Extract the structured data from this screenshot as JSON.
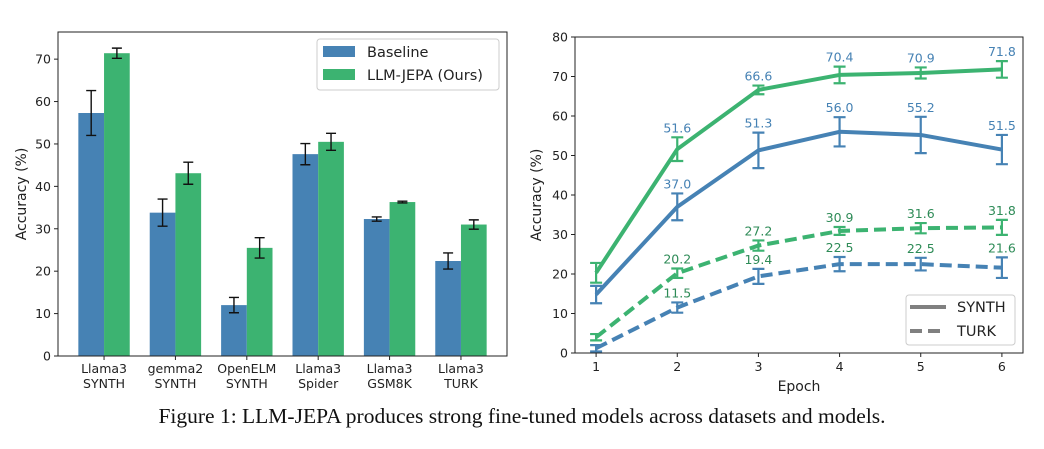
{
  "caption": "Figure 1: LLM-JEPA produces strong fine-tuned models across datasets and models.",
  "colors": {
    "baseline": "#4682b4",
    "llm_jepa": "#3cb371",
    "legend_line": "#808080"
  },
  "chart_data": [
    {
      "type": "bar",
      "categories": [
        [
          "Llama3",
          "SYNTH"
        ],
        [
          "gemma2",
          "SYNTH"
        ],
        [
          "OpenELM",
          "SYNTH"
        ],
        [
          "Llama3",
          "Spider"
        ],
        [
          "Llama3",
          "GSM8K"
        ],
        [
          "Llama3",
          "TURK"
        ]
      ],
      "series": [
        {
          "name": "Baseline",
          "color": "#4682b4",
          "values": [
            57.3,
            33.8,
            12.0,
            47.6,
            32.3,
            22.4
          ],
          "errors": [
            5.3,
            3.2,
            1.8,
            2.5,
            0.5,
            1.9
          ]
        },
        {
          "name": "LLM-JEPA (Ours)",
          "color": "#3cb371",
          "values": [
            71.4,
            43.1,
            25.5,
            50.5,
            36.3,
            31.0
          ],
          "errors": [
            1.2,
            2.6,
            2.4,
            2.0,
            0.2,
            1.1
          ]
        }
      ],
      "xlabel": "",
      "ylabel": "Accuracy (%)",
      "ylim": [
        0,
        76.4
      ],
      "yticks": [
        0,
        10,
        20,
        30,
        40,
        50,
        60,
        70
      ],
      "grid": false,
      "legend": "top-right"
    },
    {
      "type": "line",
      "x": [
        1,
        2,
        3,
        4,
        5,
        6
      ],
      "xlabel": "Epoch",
      "ylabel": "Accuracy (%)",
      "xlim": [
        0.74,
        6.26
      ],
      "ylim": [
        0,
        80
      ],
      "yticks": [
        0,
        10,
        20,
        30,
        40,
        50,
        60,
        70,
        80
      ],
      "grid": false,
      "legend": "bottom-right",
      "legend_entries": [
        {
          "label": "SYNTH",
          "style": "solid"
        },
        {
          "label": "TURK",
          "style": "dashed"
        }
      ],
      "series": [
        {
          "model": "LLM-JEPA",
          "dataset": "SYNTH",
          "color": "#3cb371",
          "style": "solid",
          "label_color": "#4682b4",
          "values": [
            20.3,
            51.6,
            66.6,
            70.4,
            70.9,
            71.8
          ],
          "errors": [
            2.5,
            3.0,
            1.1,
            2.1,
            1.4,
            2.1
          ],
          "labels": [
            "",
            "51.6",
            "66.6",
            "70.4",
            "70.9",
            "71.8"
          ]
        },
        {
          "model": "Baseline",
          "dataset": "SYNTH",
          "color": "#4682b4",
          "style": "solid",
          "label_color": "#4682b4",
          "values": [
            14.8,
            37.0,
            51.3,
            56.0,
            55.2,
            51.5
          ],
          "errors": [
            2.2,
            3.4,
            4.5,
            3.7,
            4.6,
            3.7
          ],
          "labels": [
            "",
            "37.0",
            "51.3",
            "56.0",
            "55.2",
            "51.5"
          ]
        },
        {
          "model": "LLM-JEPA",
          "dataset": "TURK",
          "color": "#3cb371",
          "style": "dashed",
          "label_color": "#2e8b57",
          "values": [
            4.0,
            20.2,
            27.2,
            30.9,
            31.6,
            31.8
          ],
          "errors": [
            0.8,
            1.2,
            1.3,
            1.0,
            1.3,
            1.9
          ],
          "labels": [
            "",
            "20.2",
            "27.2",
            "30.9",
            "31.6",
            "31.8"
          ]
        },
        {
          "model": "Baseline",
          "dataset": "TURK",
          "color": "#4682b4",
          "style": "dashed",
          "label_color": "#2e8b57",
          "values": [
            1.2,
            11.5,
            19.4,
            22.5,
            22.5,
            21.6
          ],
          "errors": [
            0.8,
            1.3,
            1.9,
            1.8,
            1.6,
            2.6
          ],
          "labels": [
            "",
            "11.5",
            "19.4",
            "22.5",
            "22.5",
            "21.6"
          ]
        }
      ]
    }
  ]
}
